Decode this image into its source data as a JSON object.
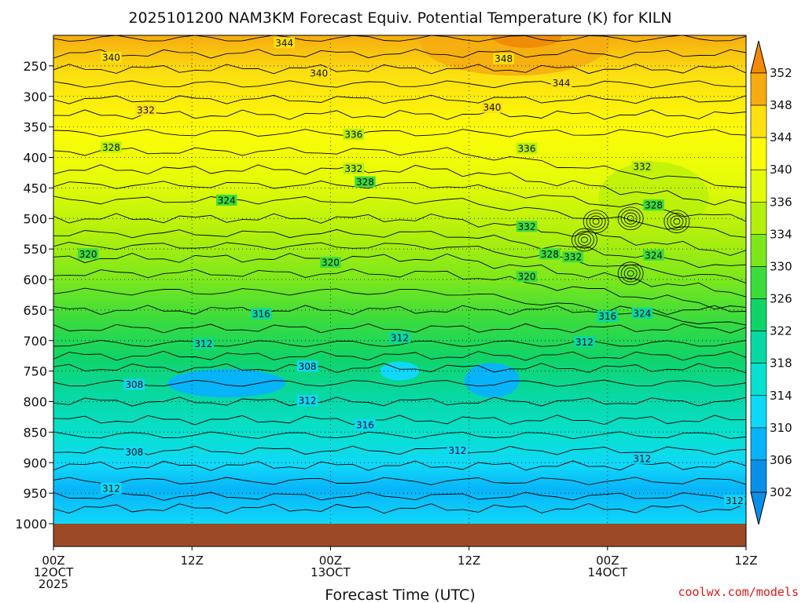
{
  "chart_data": {
    "type": "heatmap",
    "title": "2025101200 NAM3KM Forecast Equiv. Potential Temperature (K) for KILN",
    "xlabel": "Forecast Time (UTC)",
    "ylabel": "",
    "y_ticks": [
      "250",
      "300",
      "350",
      "400",
      "450",
      "500",
      "550",
      "600",
      "650",
      "700",
      "750",
      "800",
      "850",
      "900",
      "950",
      "1000"
    ],
    "y_values": [
      250,
      300,
      350,
      400,
      450,
      500,
      550,
      600,
      650,
      700,
      750,
      800,
      850,
      900,
      950,
      1000
    ],
    "ylim": [
      200,
      1000
    ],
    "x_ticks": [
      {
        "hour": 0,
        "lines": [
          "00Z",
          "12OCT",
          "2025"
        ]
      },
      {
        "hour": 12,
        "lines": [
          "12Z"
        ]
      },
      {
        "hour": 24,
        "lines": [
          "00Z",
          "13OCT"
        ]
      },
      {
        "hour": 36,
        "lines": [
          "12Z"
        ]
      },
      {
        "hour": 48,
        "lines": [
          "00Z",
          "14OCT"
        ]
      },
      {
        "hour": 60,
        "lines": [
          "12Z"
        ]
      }
    ],
    "xlim": [
      0,
      60
    ],
    "colorbar": {
      "labels": [
        "352",
        "348",
        "344",
        "340",
        "336",
        "334",
        "330",
        "326",
        "322",
        "318",
        "314",
        "310",
        "306",
        "302"
      ],
      "values": [
        352,
        348,
        344,
        340,
        336,
        334,
        330,
        326,
        322,
        318,
        314,
        310,
        306,
        302
      ],
      "colors": [
        "#f08a08",
        "#f6ac10",
        "#fce010",
        "#fcfc08",
        "#e4fc08",
        "#b4f00c",
        "#7ce81c",
        "#3cdc3c",
        "#10d468",
        "#08d8a4",
        "#08e0d0",
        "#10d8f8",
        "#08b4f8",
        "#0890e8"
      ]
    },
    "contour_labels": [
      {
        "text": "344",
        "hour": 20.0,
        "pressure": 212
      },
      {
        "text": "340",
        "hour": 5.0,
        "pressure": 236
      },
      {
        "text": "348",
        "hour": 39.0,
        "pressure": 238
      },
      {
        "text": "340",
        "hour": 23.0,
        "pressure": 262
      },
      {
        "text": "344",
        "hour": 44.0,
        "pressure": 278
      },
      {
        "text": "332",
        "hour": 8.0,
        "pressure": 322
      },
      {
        "text": "340",
        "hour": 38.0,
        "pressure": 318
      },
      {
        "text": "328",
        "hour": 5.0,
        "pressure": 383
      },
      {
        "text": "336",
        "hour": 26.0,
        "pressure": 362
      },
      {
        "text": "336",
        "hour": 41.0,
        "pressure": 385
      },
      {
        "text": "332",
        "hour": 26.0,
        "pressure": 418
      },
      {
        "text": "332",
        "hour": 51.0,
        "pressure": 415
      },
      {
        "text": "328",
        "hour": 27.0,
        "pressure": 440
      },
      {
        "text": "328",
        "hour": 52.0,
        "pressure": 478
      },
      {
        "text": "324",
        "hour": 15.0,
        "pressure": 470
      },
      {
        "text": "332",
        "hour": 41.0,
        "pressure": 513
      },
      {
        "text": "320",
        "hour": 3.0,
        "pressure": 558
      },
      {
        "text": "328",
        "hour": 43.0,
        "pressure": 558
      },
      {
        "text": "332",
        "hour": 45.0,
        "pressure": 563
      },
      {
        "text": "324",
        "hour": 52.0,
        "pressure": 560
      },
      {
        "text": "320",
        "hour": 24.0,
        "pressure": 572
      },
      {
        "text": "320",
        "hour": 41.0,
        "pressure": 595
      },
      {
        "text": "316",
        "hour": 18.0,
        "pressure": 656
      },
      {
        "text": "316",
        "hour": 48.0,
        "pressure": 660
      },
      {
        "text": "324",
        "hour": 51.0,
        "pressure": 655
      },
      {
        "text": "312",
        "hour": 13.0,
        "pressure": 705
      },
      {
        "text": "312",
        "hour": 30.0,
        "pressure": 695
      },
      {
        "text": "312",
        "hour": 46.0,
        "pressure": 702
      },
      {
        "text": "308",
        "hour": 22.0,
        "pressure": 742
      },
      {
        "text": "308",
        "hour": 7.0,
        "pressure": 772
      },
      {
        "text": "312",
        "hour": 22.0,
        "pressure": 798
      },
      {
        "text": "316",
        "hour": 27.0,
        "pressure": 838
      },
      {
        "text": "308",
        "hour": 7.0,
        "pressure": 882
      },
      {
        "text": "312",
        "hour": 35.0,
        "pressure": 880
      },
      {
        "text": "312",
        "hour": 51.0,
        "pressure": 893
      },
      {
        "text": "312",
        "hour": 5.0,
        "pressure": 942
      },
      {
        "text": "312",
        "hour": 59.0,
        "pressure": 962
      }
    ]
  },
  "credit": "coolwx.com/models",
  "ground_color": "#9c4a26"
}
